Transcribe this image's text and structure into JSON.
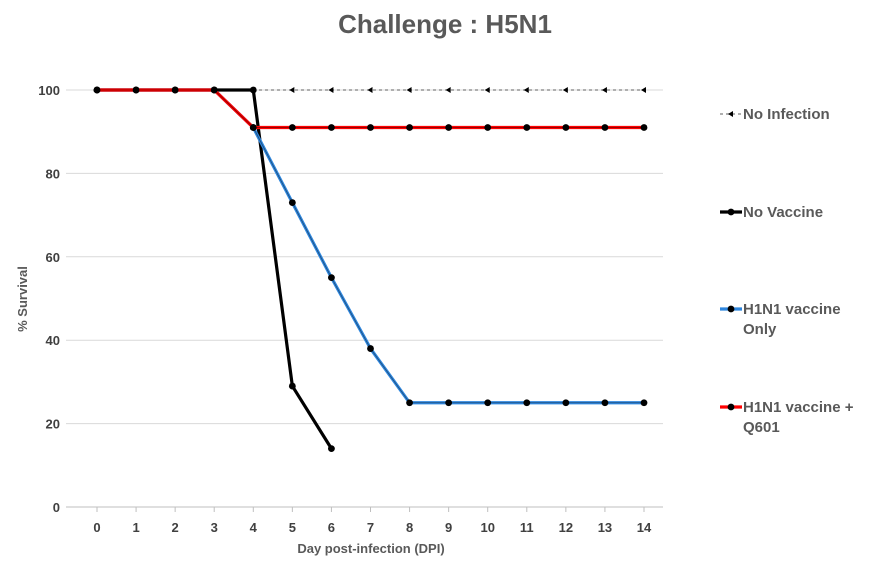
{
  "chart_data": {
    "type": "line",
    "title": "Challenge : H5N1",
    "xlabel": "Day post-infection (DPI)",
    "ylabel": "% Survival",
    "x": [
      0,
      1,
      2,
      3,
      4,
      5,
      6,
      7,
      8,
      9,
      10,
      11,
      12,
      13,
      14
    ],
    "xlim": [
      0,
      14
    ],
    "ylim": [
      0,
      100
    ],
    "yticks": [
      0,
      20,
      40,
      60,
      80,
      100
    ],
    "grid": true,
    "legend_position": "right",
    "series": [
      {
        "name": "No Infection",
        "color": "#7f7f7f",
        "style": "dashed",
        "x": [
          0,
          1,
          2,
          3,
          4,
          5,
          6,
          7,
          8,
          9,
          10,
          11,
          12,
          13,
          14
        ],
        "values": [
          100,
          100,
          100,
          100,
          100,
          100,
          100,
          100,
          100,
          100,
          100,
          100,
          100,
          100,
          100
        ]
      },
      {
        "name": "No Vaccine",
        "color": "#000000",
        "style": "solid",
        "x": [
          0,
          1,
          2,
          3,
          4,
          5,
          6
        ],
        "values": [
          100,
          100,
          100,
          100,
          100,
          29,
          14
        ]
      },
      {
        "name": "H1N1 vaccine Only",
        "color": "#2e86de",
        "style": "solid",
        "x": [
          0,
          1,
          2,
          3,
          4,
          5,
          6,
          7,
          8,
          9,
          10,
          11,
          12,
          13,
          14
        ],
        "values": [
          100,
          100,
          100,
          100,
          91,
          73,
          55,
          38,
          25,
          25,
          25,
          25,
          25,
          25,
          25
        ]
      },
      {
        "name": "H1N1 vaccine + Q601",
        "color": "#ff0000",
        "style": "solid",
        "x": [
          0,
          1,
          2,
          3,
          4,
          5,
          6,
          7,
          8,
          9,
          10,
          11,
          12,
          13,
          14
        ],
        "values": [
          100,
          100,
          100,
          100,
          91,
          91,
          91,
          91,
          91,
          91,
          91,
          91,
          91,
          91,
          91
        ]
      }
    ]
  },
  "legend": [
    {
      "lines": [
        "No Infection"
      ]
    },
    {
      "lines": [
        "No Vaccine"
      ]
    },
    {
      "lines": [
        "H1N1 vaccine",
        "Only"
      ]
    },
    {
      "lines": [
        "H1N1 vaccine +",
        "Q601"
      ]
    }
  ]
}
